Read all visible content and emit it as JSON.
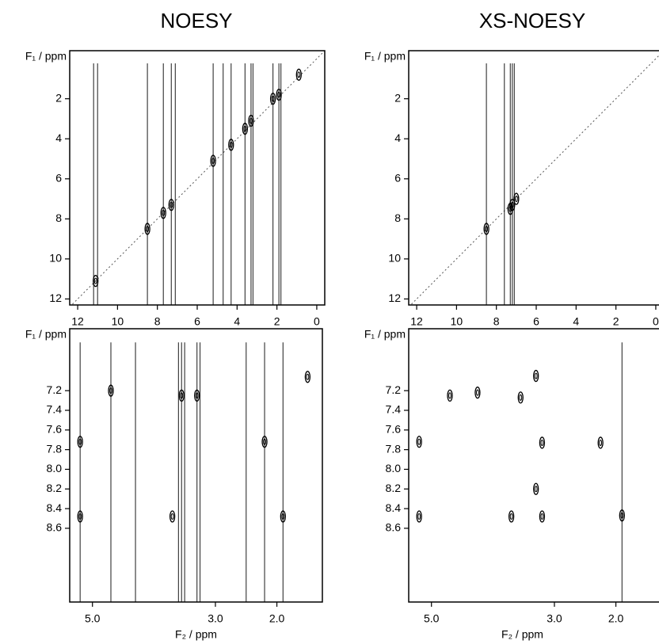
{
  "chart_data": [
    {
      "type": "contour",
      "title": "NOESY",
      "y_label": "F₁ / ppm",
      "xlim": [
        12.4,
        -0.4
      ],
      "ylim": [
        -0.4,
        12.3
      ],
      "xticks": [
        12,
        10,
        8,
        6,
        4,
        2,
        0
      ],
      "yticks": [
        2,
        4,
        6,
        8,
        10,
        12
      ],
      "color": "#000000",
      "streaks": [
        11.2,
        11.0,
        8.5,
        7.7,
        7.3,
        7.1,
        5.2,
        4.7,
        4.3,
        3.6,
        3.3,
        3.2,
        2.2,
        1.9,
        1.8
      ],
      "series": [
        {
          "x": [
            11.1,
            8.5,
            7.7,
            7.3,
            5.2,
            4.3,
            3.6,
            3.3,
            2.2,
            1.9,
            0.9
          ],
          "values": [
            11.1,
            8.5,
            7.7,
            7.3,
            5.1,
            4.3,
            3.5,
            3.1,
            2.0,
            1.8,
            0.8
          ]
        }
      ]
    },
    {
      "type": "contour",
      "title": "XS-NOESY",
      "y_label": "F₁ / ppm",
      "xlim": [
        12.4,
        -0.4
      ],
      "ylim": [
        -0.4,
        12.3
      ],
      "xticks": [
        12,
        10,
        8,
        6,
        4,
        2,
        0
      ],
      "yticks": [
        2,
        4,
        6,
        8,
        10,
        12
      ],
      "color": "#000000",
      "streaks": [
        8.5,
        7.6,
        7.3,
        7.2,
        7.1
      ],
      "series": [
        {
          "x": [
            8.5,
            7.3,
            7.2,
            7.0
          ],
          "values": [
            8.5,
            7.5,
            7.3,
            7.0
          ]
        }
      ]
    },
    {
      "type": "contour",
      "y_label": "F₁ / ppm",
      "x_label": "F₂ / ppm",
      "xlim": [
        5.37,
        1.26
      ],
      "ylim": [
        6.57,
        9.35
      ],
      "xticks": [
        {
          "value": 5,
          "label": "5.0"
        },
        {
          "value": 3,
          "label": "3.0"
        },
        {
          "value": 2,
          "label": "2.0"
        }
      ],
      "yticks": [
        7.2,
        7.4,
        7.6,
        7.8,
        {
          "value": 8,
          "label": "8.0"
        },
        8.2,
        8.4,
        8.6
      ],
      "color": "#000000",
      "streaks": [
        5.2,
        4.7,
        4.3,
        3.6,
        3.55,
        3.5,
        3.3,
        3.25,
        2.5,
        2.2,
        1.9
      ],
      "series": [
        {
          "x": [
            5.2,
            5.2,
            4.7,
            3.7,
            2.2,
            1.9,
            1.5,
            3.55,
            3.3
          ],
          "values": [
            7.72,
            8.48,
            7.2,
            8.48,
            7.72,
            8.48,
            7.06,
            7.25,
            7.25
          ]
        }
      ]
    },
    {
      "type": "contour",
      "y_label": "F₁ / ppm",
      "x_label": "F₂ / ppm",
      "xlim": [
        5.37,
        1.26
      ],
      "ylim": [
        6.57,
        9.35
      ],
      "xticks": [
        {
          "value": 5,
          "label": "5.0"
        },
        {
          "value": 3,
          "label": "3.0"
        },
        {
          "value": 2,
          "label": "2.0"
        }
      ],
      "yticks": [
        7.2,
        7.4,
        7.6,
        7.8,
        {
          "value": 8,
          "label": "8.0"
        },
        8.2,
        8.4,
        8.6
      ],
      "color": "#000000",
      "streaks": [
        1.9
      ],
      "series": [
        {
          "x": [
            5.2,
            5.2,
            4.7,
            4.25,
            3.55,
            3.7,
            3.2,
            3.2,
            2.25,
            1.9,
            3.3,
            3.3
          ],
          "values": [
            7.72,
            8.48,
            7.25,
            7.22,
            7.27,
            8.48,
            7.73,
            8.48,
            7.73,
            8.47,
            7.05,
            8.2
          ]
        }
      ]
    }
  ]
}
